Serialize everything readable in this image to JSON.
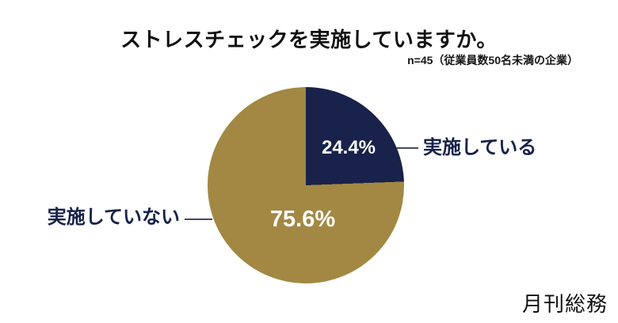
{
  "title": "ストレスチェックを実施していますか。",
  "subtitle": "n=45（従業員数50名未満の企業）",
  "logo_text": "月刊総務",
  "colors": {
    "navy": "#18224a",
    "gold": "#a28843",
    "leader_line": "#454b5e",
    "background": "#ffffff"
  },
  "chart_data": {
    "type": "pie",
    "title": "ストレスチェックを実施していますか。",
    "sample_note": "n=45（従業員数50名未満の企業）",
    "start_angle_deg": 0,
    "direction": "clockwise",
    "legend_position": "none",
    "slices": [
      {
        "label": "実施している",
        "value": 24.4,
        "display": "24.4%",
        "color": "#18224a",
        "label_side": "right"
      },
      {
        "label": "実施していない",
        "value": 75.6,
        "display": "75.6%",
        "color": "#a28843",
        "label_side": "left"
      }
    ]
  }
}
